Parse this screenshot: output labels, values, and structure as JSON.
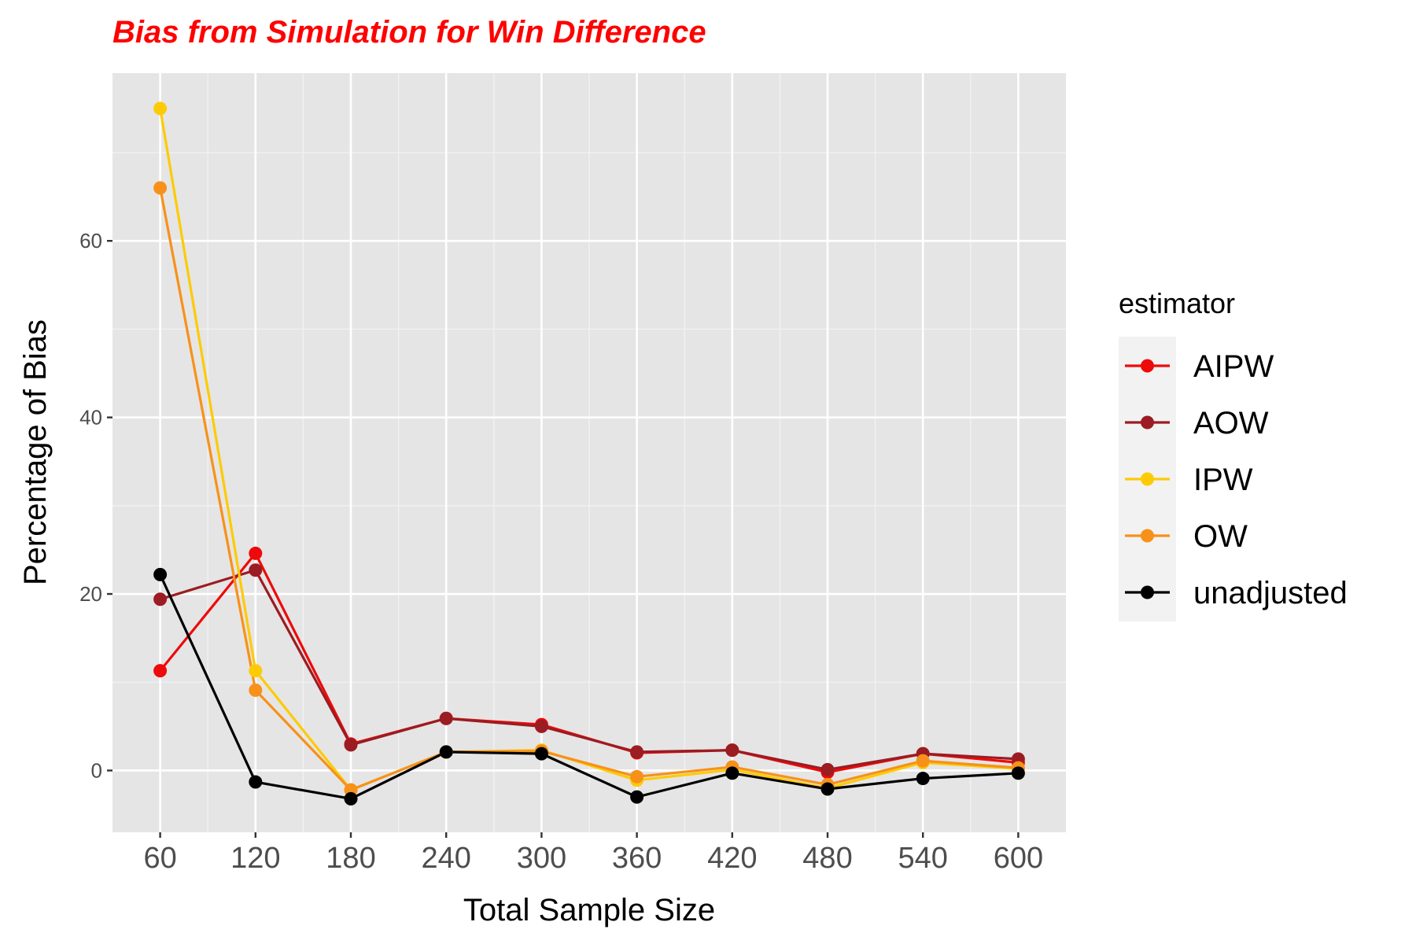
{
  "chart_data": {
    "type": "line",
    "title": "Bias from Simulation for Win Difference",
    "xlabel": "Total Sample Size",
    "ylabel": "Percentage of Bias",
    "x": [
      60,
      120,
      180,
      240,
      300,
      360,
      420,
      480,
      540,
      600
    ],
    "x_tick_labels": [
      "60",
      "120",
      "180",
      "240",
      "300",
      "360",
      "420",
      "480",
      "540",
      "600"
    ],
    "y_ticks": [
      0,
      20,
      40,
      60
    ],
    "y_tick_labels": [
      "0",
      "20",
      "40",
      "60"
    ],
    "xlim": [
      30,
      630
    ],
    "ylim": [
      -7,
      79
    ],
    "grid": true,
    "legend": {
      "title": "estimator",
      "position": "right"
    },
    "series": [
      {
        "name": "AIPW",
        "color": "#ee0a0a",
        "values": [
          11.3,
          24.6,
          3.0,
          5.9,
          5.2,
          2.0,
          2.3,
          -0.2,
          1.9,
          0.9
        ]
      },
      {
        "name": "AOW",
        "color": "#9b1c22",
        "values": [
          19.4,
          22.7,
          2.9,
          5.9,
          5.0,
          2.1,
          2.3,
          0.1,
          1.9,
          1.3
        ]
      },
      {
        "name": "IPW",
        "color": "#fccb06",
        "values": [
          75.0,
          11.3,
          -2.2,
          2.1,
          2.3,
          -1.1,
          0.1,
          -2.0,
          0.9,
          0.2
        ]
      },
      {
        "name": "OW",
        "color": "#f7911a",
        "values": [
          66.0,
          9.1,
          -2.2,
          2.1,
          2.2,
          -0.7,
          0.4,
          -1.6,
          1.1,
          0.3
        ]
      },
      {
        "name": "unadjusted",
        "color": "#000000",
        "values": [
          22.2,
          -1.3,
          -3.2,
          2.1,
          1.9,
          -3.0,
          -0.3,
          -2.1,
          -0.9,
          -0.3
        ]
      }
    ]
  }
}
